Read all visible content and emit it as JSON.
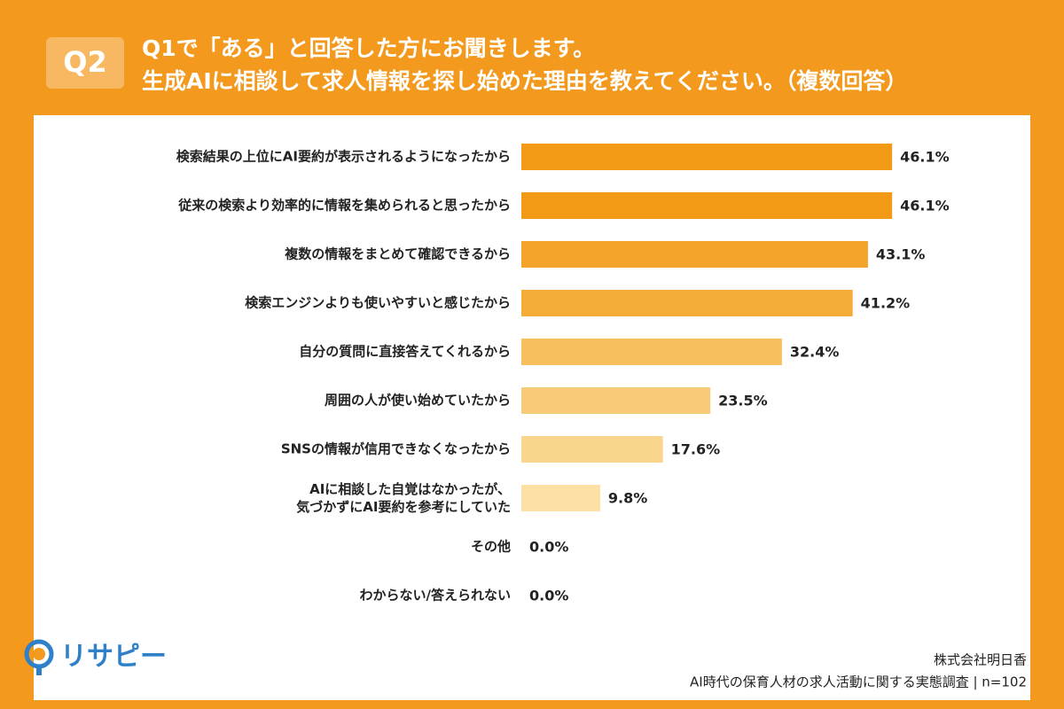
{
  "header": {
    "badge": "Q2",
    "title": "Q1で「ある」と回答した方にお聞きします。",
    "subtitle": "生成AIに相談して求人情報を探し始めた理由を教えてください。（複数回答）"
  },
  "chart_data": {
    "type": "bar",
    "orientation": "horizontal",
    "categories": [
      "検索結果の上位にAI要約が表示されるようになったから",
      "従来の検索より効率的に情報を集められると思ったから",
      "複数の情報をまとめて確認できるから",
      "検索エンジンよりも使いやすいと感じたから",
      "自分の質問に直接答えてくれるから",
      "周囲の人が使い始めていたから",
      "SNSの情報が信用できなくなったから",
      "AIに相談した自覚はなかったが、\n気づかずにAI要約を参考にしていた",
      "その他",
      "わからない/答えられない"
    ],
    "values": [
      46.1,
      46.1,
      43.1,
      41.2,
      32.4,
      23.5,
      17.6,
      9.8,
      0.0,
      0.0
    ],
    "value_labels": [
      "46.1%",
      "46.1%",
      "43.1%",
      "41.2%",
      "32.4%",
      "23.5%",
      "17.6%",
      "9.8%",
      "0.0%",
      "0.0%"
    ],
    "colors": [
      "#F29A16",
      "#F29A16",
      "#F4A42A",
      "#F5AB38",
      "#F8BF5E",
      "#F9CA77",
      "#FAD58D",
      "#FCE0A4",
      "#FCE6B5",
      "#FDEBC4"
    ]
  },
  "footer": {
    "logo": "リサピー",
    "company": "株式会社明日香",
    "survey": "AI時代の保育人材の求人活動に関する実態調査 | n=102"
  }
}
